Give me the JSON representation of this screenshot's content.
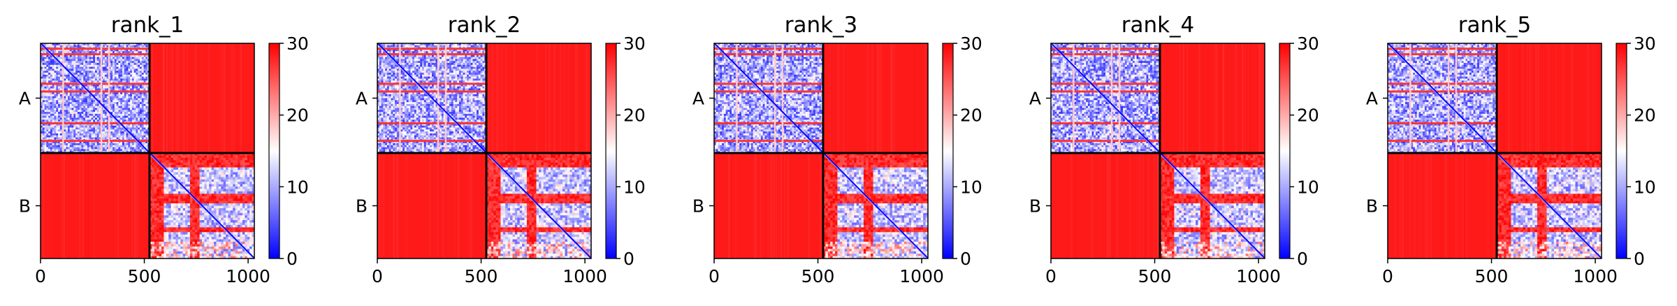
{
  "chart_data": [
    {
      "type": "heatmap",
      "title": "rank_1",
      "xticks": [
        0,
        500,
        1000
      ],
      "xlim": [
        0,
        1030
      ],
      "chain_labels": [
        "A",
        "B"
      ],
      "chain_boundary": 525,
      "colorbar": {
        "min": 0,
        "max": 30,
        "ticks": [
          0,
          10,
          20,
          30
        ],
        "colormap": [
          "#0000ff",
          "#ffffff",
          "#ff0000"
        ]
      }
    },
    {
      "type": "heatmap",
      "title": "rank_2",
      "xticks": [
        0,
        500,
        1000
      ],
      "xlim": [
        0,
        1030
      ],
      "chain_labels": [
        "A",
        "B"
      ],
      "chain_boundary": 525,
      "colorbar": {
        "min": 0,
        "max": 30,
        "ticks": [
          0,
          10,
          20,
          30
        ],
        "colormap": [
          "#0000ff",
          "#ffffff",
          "#ff0000"
        ]
      }
    },
    {
      "type": "heatmap",
      "title": "rank_3",
      "xticks": [
        0,
        500,
        1000
      ],
      "xlim": [
        0,
        1030
      ],
      "chain_labels": [
        "A",
        "B"
      ],
      "chain_boundary": 525,
      "colorbar": {
        "min": 0,
        "max": 30,
        "ticks": [
          0,
          10,
          20,
          30
        ],
        "colormap": [
          "#0000ff",
          "#ffffff",
          "#ff0000"
        ]
      }
    },
    {
      "type": "heatmap",
      "title": "rank_4",
      "xticks": [
        0,
        500,
        1000
      ],
      "xlim": [
        0,
        1030
      ],
      "chain_labels": [
        "A",
        "B"
      ],
      "chain_boundary": 525,
      "colorbar": {
        "min": 0,
        "max": 30,
        "ticks": [
          0,
          10,
          20,
          30
        ],
        "colormap": [
          "#0000ff",
          "#ffffff",
          "#ff0000"
        ]
      }
    },
    {
      "type": "heatmap",
      "title": "rank_5",
      "xticks": [
        0,
        500,
        1000
      ],
      "xlim": [
        0,
        1030
      ],
      "chain_labels": [
        "A",
        "B"
      ],
      "chain_boundary": 525,
      "colorbar": {
        "min": 0,
        "max": 30,
        "ticks": [
          0,
          10,
          20,
          30
        ],
        "colormap": [
          "#0000ff",
          "#ffffff",
          "#ff0000"
        ]
      }
    }
  ]
}
